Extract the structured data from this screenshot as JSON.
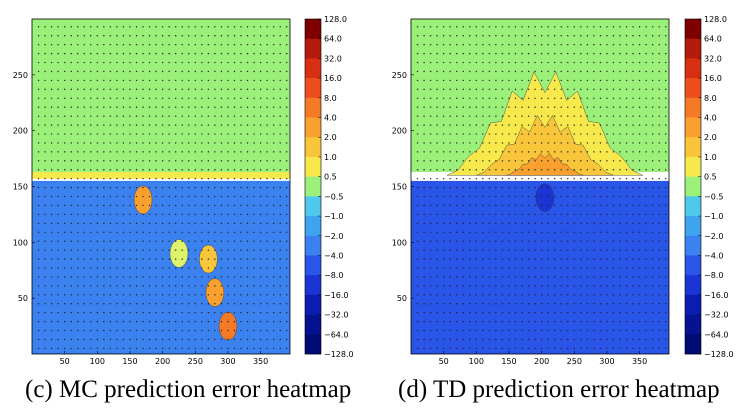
{
  "chart_data": [
    {
      "type": "heatmap",
      "caption": "(c) MC prediction error heatmap",
      "x_ticks": [
        50,
        100,
        150,
        200,
        250,
        300,
        350
      ],
      "y_ticks": [
        50,
        100,
        150,
        200,
        250
      ],
      "xlim": [
        0,
        395
      ],
      "ylim": [
        0,
        300
      ],
      "colorbar_labels": [
        "128.0",
        "64.0",
        "32.0",
        "16.0",
        "8.0",
        "4.0",
        "2.0",
        "1.0",
        "0.5",
        "-0.5",
        "-1.0",
        "-2.0",
        "-4.0",
        "-8.0",
        "-16.0",
        "-32.0",
        "-64.0",
        "-128.0"
      ],
      "regions": [
        {
          "value": 0.0,
          "y_range": [
            163,
            300
          ],
          "note": "near-zero error above boundary"
        },
        {
          "value": 1.0,
          "y_range": [
            157,
            163
          ],
          "note": "thin warm band at boundary"
        },
        {
          "value": -4.0,
          "y_range": [
            0,
            155
          ],
          "note": "negative error below boundary"
        }
      ],
      "hotspots": [
        {
          "x": 170,
          "y": 138,
          "value": 4.0
        },
        {
          "x": 270,
          "y": 85,
          "value": 2.0
        },
        {
          "x": 280,
          "y": 55,
          "value": 4.0
        },
        {
          "x": 300,
          "y": 25,
          "value": 8.0
        },
        {
          "x": 225,
          "y": 90,
          "value": 0.5
        }
      ]
    },
    {
      "type": "heatmap",
      "caption": "(d) TD prediction error heatmap",
      "x_ticks": [
        50,
        100,
        150,
        200,
        250,
        300,
        350
      ],
      "y_ticks": [
        50,
        100,
        150,
        200,
        250
      ],
      "xlim": [
        0,
        395
      ],
      "ylim": [
        0,
        300
      ],
      "colorbar_labels": [
        "128.0",
        "64.0",
        "32.0",
        "16.0",
        "8.0",
        "4.0",
        "2.0",
        "1.0",
        "0.5",
        "-0.5",
        "-1.0",
        "-2.0",
        "-4.0",
        "-8.0",
        "-16.0",
        "-32.0",
        "-64.0",
        "-128.0"
      ],
      "regions": [
        {
          "value": 0.0,
          "y_range": [
            163,
            300
          ],
          "note": "near-zero error above boundary"
        },
        {
          "value": 1.0,
          "shape": "central peak",
          "x_center": 205,
          "y_top": 255
        },
        {
          "value": 2.0,
          "shape": "central peak",
          "x_center": 205,
          "y_top": 215
        },
        {
          "value": 4.0,
          "shape": "central peak",
          "x_center": 205,
          "y_top": 180
        },
        {
          "value": -8.0,
          "y_range": [
            0,
            155
          ],
          "note": "negative error below boundary"
        }
      ],
      "hotspots": [
        {
          "x": 205,
          "y": 140,
          "value": -16.0
        }
      ]
    }
  ],
  "colors": {
    "128.0": "#7f0000",
    "64.0": "#b31b0c",
    "32.0": "#d62f12",
    "16.0": "#ee4d1c",
    "8.0": "#f57a25",
    "4.0": "#f9a02e",
    "2.0": "#f9c63b",
    "1.0": "#f7e84c",
    "0.5": "#ddf36a",
    "zero": "#9bf07a",
    "-0.5": "#84e5c0",
    "-1.0": "#4fc8ee",
    "-2.0": "#3fa4ef",
    "-4.0": "#3b82f0",
    "-8.0": "#2a55e9",
    "-16.0": "#1a35d4",
    "-32.0": "#0b1db0",
    "-64.0": "#061391",
    "-128.0": "#000c76"
  }
}
